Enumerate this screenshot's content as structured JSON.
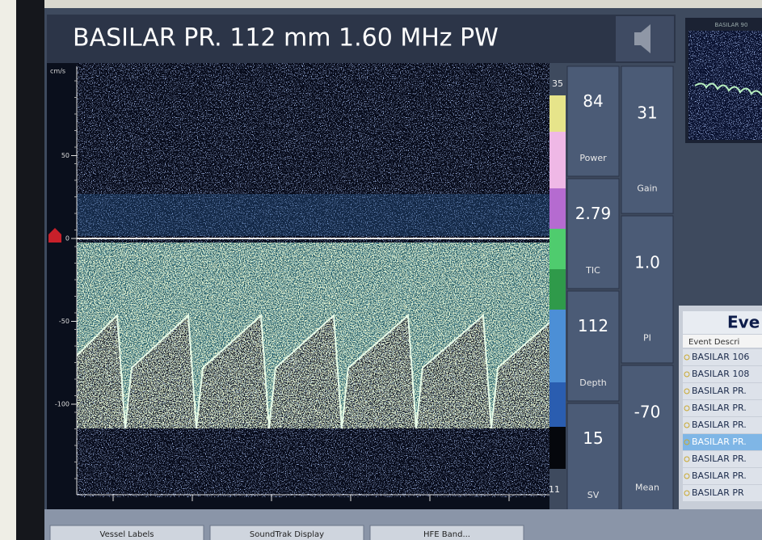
{
  "header": {
    "title": "BASILAR PR. 112 mm 1.60 MHz PW"
  },
  "spectrum": {
    "unit": "cm/s",
    "yticks": [
      50,
      0,
      -50,
      -100
    ],
    "scale_top": "35",
    "scale_bottom": "11"
  },
  "readouts": {
    "left": [
      {
        "value": "84",
        "label": "Power"
      },
      {
        "value": "2.79",
        "label": "TIC"
      },
      {
        "value": "112",
        "label": "Depth"
      },
      {
        "value": "15",
        "label": "SV"
      }
    ],
    "right": [
      {
        "value": "31",
        "label": "Gain"
      },
      {
        "value": "1.0",
        "label": "PI"
      },
      {
        "value": "-70",
        "label": "Mean"
      }
    ]
  },
  "thumbnail": {
    "title": "BASILAR 90"
  },
  "events": {
    "title": "Eve",
    "column": "Event Descri",
    "items": [
      "BASILAR 106",
      "BASILAR 108",
      "BASILAR PR.",
      "BASILAR PR.",
      "BASILAR PR.",
      "BASILAR PR.",
      "BASILAR PR.",
      "BASILAR PR.",
      "BASILAR PR"
    ],
    "selected": 5
  },
  "toolbar": {
    "buttons": [
      "Vessel Labels",
      "SoundTrak Display",
      "HFE Band..."
    ]
  }
}
